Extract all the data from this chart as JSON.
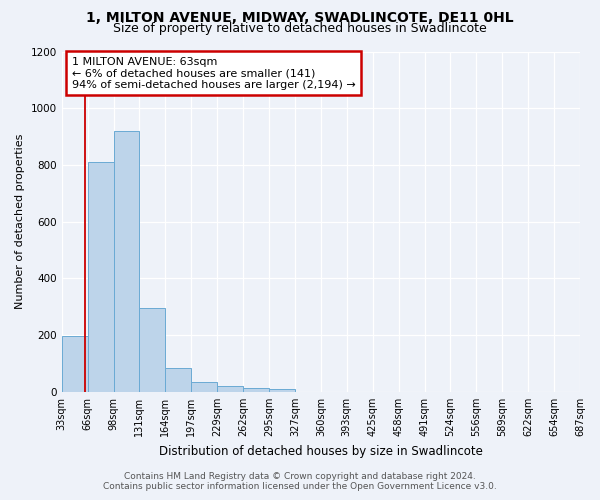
{
  "title1": "1, MILTON AVENUE, MIDWAY, SWADLINCOTE, DE11 0HL",
  "title2": "Size of property relative to detached houses in Swadlincote",
  "xlabel": "Distribution of detached houses by size in Swadlincote",
  "ylabel": "Number of detached properties",
  "footer1": "Contains HM Land Registry data © Crown copyright and database right 2024.",
  "footer2": "Contains public sector information licensed under the Open Government Licence v3.0.",
  "annotation_line1": "1 MILTON AVENUE: 63sqm",
  "annotation_line2": "← 6% of detached houses are smaller (141)",
  "annotation_line3": "94% of semi-detached houses are larger (2,194) →",
  "bar_values": [
    196,
    810,
    920,
    295,
    85,
    35,
    20,
    15,
    12,
    0,
    0,
    0,
    0,
    0,
    0,
    0,
    0,
    0,
    0,
    0
  ],
  "bin_labels": [
    "33sqm",
    "66sqm",
    "98sqm",
    "131sqm",
    "164sqm",
    "197sqm",
    "229sqm",
    "262sqm",
    "295sqm",
    "327sqm",
    "360sqm",
    "393sqm",
    "425sqm",
    "458sqm",
    "491sqm",
    "524sqm",
    "556sqm",
    "589sqm",
    "622sqm",
    "654sqm",
    "687sqm"
  ],
  "bar_color": "#bdd4ea",
  "bar_edge_color": "#6aaad4",
  "marker_color": "#cc0000",
  "ylim": [
    0,
    1200
  ],
  "yticks": [
    0,
    200,
    400,
    600,
    800,
    1000,
    1200
  ],
  "annotation_box_edge": "#cc0000",
  "bg_color": "#eef2f9",
  "grid_color": "#ffffff",
  "title1_fontsize": 10,
  "title2_fontsize": 9,
  "xlabel_fontsize": 8.5,
  "ylabel_fontsize": 8,
  "tick_fontsize": 7,
  "footer_fontsize": 6.5
}
